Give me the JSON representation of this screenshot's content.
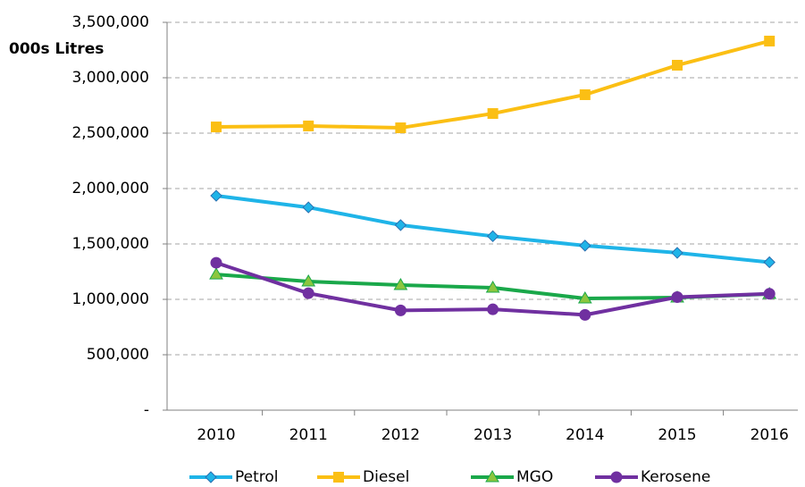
{
  "chart_data": {
    "type": "line",
    "y_label": "000s Litres",
    "categories": [
      "2010",
      "2011",
      "2012",
      "2013",
      "2014",
      "2015",
      "2016"
    ],
    "series": [
      {
        "name": "Petrol",
        "color": "#1fb4e8",
        "marker": "diamond",
        "values": [
          1935000,
          1830000,
          1670000,
          1570000,
          1485000,
          1420000,
          1335000
        ]
      },
      {
        "name": "Diesel",
        "color": "#fbbf14",
        "marker": "square",
        "values": [
          2556000,
          2565000,
          2548000,
          2677000,
          2847000,
          3113000,
          3331000
        ]
      },
      {
        "name": "MGO",
        "color": "#1aa84a",
        "marker": "triangle",
        "values": [
          1225000,
          1161000,
          1129000,
          1105000,
          1008000,
          1016000,
          1048000
        ]
      },
      {
        "name": "Kerosene",
        "color": "#7030a0",
        "marker": "circle",
        "values": [
          1330000,
          1055000,
          900000,
          910000,
          860000,
          1020000,
          1050000
        ]
      }
    ],
    "ylim": [
      0,
      3500000
    ],
    "yticks": [
      {
        "value": 0,
        "label": "-"
      },
      {
        "value": 500000,
        "label": "500,000"
      },
      {
        "value": 1000000,
        "label": "1,000,000"
      },
      {
        "value": 1500000,
        "label": "1,500,000"
      },
      {
        "value": 2000000,
        "label": "2,000,000"
      },
      {
        "value": 2500000,
        "label": "2,500,000"
      },
      {
        "value": 3000000,
        "label": "3,000,000"
      },
      {
        "value": 3500000,
        "label": "3,500,000"
      }
    ],
    "grid": true,
    "legend": "bottom"
  }
}
